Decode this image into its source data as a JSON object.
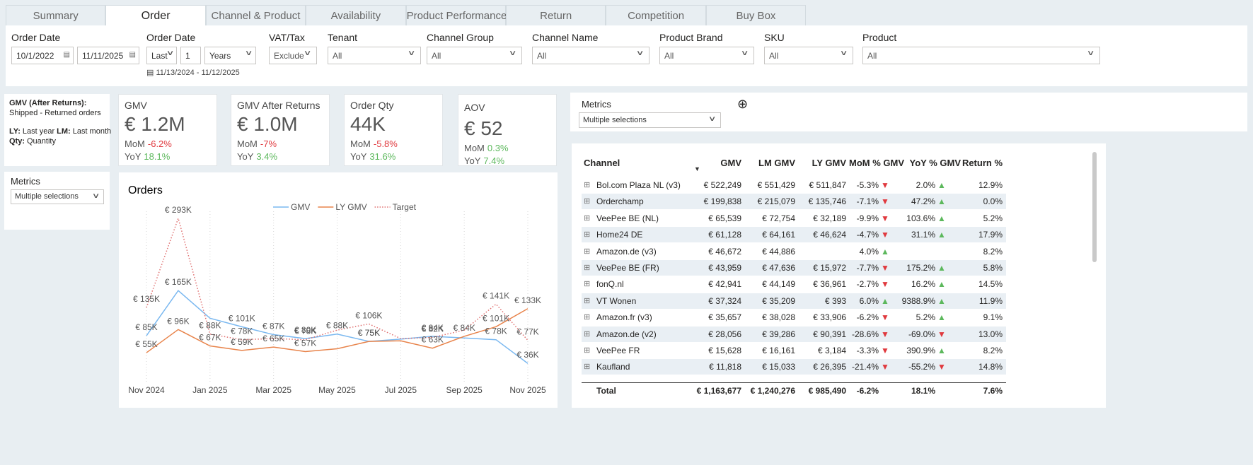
{
  "tabs": {
    "items": [
      "Summary",
      "Order",
      "Channel & Product",
      "Availability",
      "Product Performance",
      "Return",
      "Competition",
      "Buy Box"
    ],
    "active": 1
  },
  "filters": [
    {
      "label": "Order Date",
      "from": "10/1/2022",
      "to": "11/11/2025"
    },
    {
      "label": "Order Date",
      "mode": "Last",
      "count": "1",
      "unit": "Years",
      "range": "11/13/2024 - 11/12/2025"
    },
    {
      "label": "VAT/Tax",
      "value": "Exclude"
    },
    {
      "label": "Tenant",
      "value": "All"
    },
    {
      "label": "Channel Group",
      "value": "All"
    },
    {
      "label": "Channel Name",
      "value": "All"
    },
    {
      "label": "Product Brand",
      "value": "All"
    },
    {
      "label": "SKU",
      "value": "All"
    },
    {
      "label": "Product",
      "value": "All"
    }
  ],
  "note": {
    "title": "GMV (After Returns):",
    "line": "Shipped - Returned orders",
    "ly_key": "LY:",
    "ly": "Last year",
    "lm_key": "LM:",
    "lm": "Last month",
    "qty_key": "Qty:",
    "qty": "Quantity"
  },
  "metrics_left": {
    "label": "Metrics",
    "value": "Multiple selections"
  },
  "metrics_right": {
    "label": "Metrics",
    "value": "Multiple selections"
  },
  "kpis": [
    {
      "title": "GMV",
      "value": "€ 1.2M",
      "mom_label": "MoM",
      "mom": "-6.2%",
      "yoy_label": "YoY",
      "yoy": "18.1%"
    },
    {
      "title": "GMV After Returns",
      "value": "€ 1.0M",
      "mom_label": "MoM",
      "mom": "-7%",
      "yoy_label": "YoY",
      "yoy": "3.4%"
    },
    {
      "title": "Order Qty",
      "value": "44K",
      "mom_label": "MoM",
      "mom": "-5.8%",
      "yoy_label": "YoY",
      "yoy": "31.6%"
    },
    {
      "title": "AOV",
      "value": "€ 52",
      "mom_label": "MoM",
      "mom": "0.3%",
      "yoy_label": "YoY",
      "yoy": "7.4%"
    }
  ],
  "chart_data": {
    "type": "line",
    "title": "Orders",
    "x": [
      "2024-11",
      "2024-12",
      "2025-01",
      "2025-02",
      "2025-03",
      "2025-04",
      "2025-05",
      "2025-06",
      "2025-07",
      "2025-08",
      "2025-09",
      "2025-10",
      "2025-11"
    ],
    "xticks": [
      {
        "value": "2024-11",
        "label": "Nov 2024"
      },
      {
        "value": "2025-01",
        "label": "Jan 2025"
      },
      {
        "value": "2025-03",
        "label": "Mar 2025"
      },
      {
        "value": "2025-05",
        "label": "May 2025"
      },
      {
        "value": "2025-07",
        "label": "Jul 2025"
      },
      {
        "value": "2025-09",
        "label": "Sep 2025"
      },
      {
        "value": "2025-11",
        "label": "Nov 2025"
      }
    ],
    "series": [
      {
        "name": "GMV",
        "color": "#7ab8f0",
        "style": "solid",
        "values": [
          85,
          165,
          116,
          101,
          87,
          80,
          88,
          75,
          79,
          84,
          81,
          78,
          36
        ],
        "value_labels": [
          "€ 85K",
          "€ 165K",
          null,
          "€ 101K",
          "€ 87K",
          "€ 80K",
          "€ 88K",
          "€ 75K",
          null,
          "€ 84K",
          null,
          "€ 78K",
          "€ 36K"
        ]
      },
      {
        "name": "LY GMV",
        "color": "#e8834a",
        "style": "solid",
        "values": [
          55,
          96,
          67,
          59,
          65,
          57,
          62,
          75,
          76,
          63,
          84,
          101,
          133
        ],
        "value_labels": [
          "€ 55K",
          "€ 96K",
          "€ 67K",
          "€ 59K",
          "€ 65K",
          "€ 57K",
          null,
          "€ 75K",
          null,
          "€ 63K",
          "€ 84K",
          "€ 101K",
          "€ 133K"
        ]
      },
      {
        "name": "Target",
        "color": "#e07070",
        "style": "dotted",
        "values": [
          135,
          293,
          88,
          78,
          80,
          78,
          95,
          106,
          80,
          82,
          95,
          141,
          77
        ],
        "value_labels": [
          "€ 135K",
          "€ 293K",
          "€ 88K",
          "€ 78K",
          null,
          "€ 78K",
          null,
          "€ 106K",
          null,
          "€ 82K",
          null,
          "€ 141K",
          "€ 77K"
        ]
      }
    ]
  },
  "table": {
    "columns": [
      "Channel",
      "GMV",
      "LM GMV",
      "LY GMV",
      "MoM % GMV",
      "YoY % GMV",
      "Return %"
    ],
    "rows": [
      [
        "Bol.com Plaza NL (v3)",
        "€ 522,249",
        "€ 551,429",
        "€ 511,847",
        "-5.3%",
        "2.0%",
        "12.9%"
      ],
      [
        "Orderchamp",
        "€ 199,838",
        "€ 215,079",
        "€ 135,746",
        "-7.1%",
        "47.2%",
        "0.0%"
      ],
      [
        "VeePee BE (NL)",
        "€ 65,539",
        "€ 72,754",
        "€ 32,189",
        "-9.9%",
        "103.6%",
        "5.2%"
      ],
      [
        "Home24 DE",
        "€ 61,128",
        "€ 64,161",
        "€ 46,624",
        "-4.7%",
        "31.1%",
        "17.9%"
      ],
      [
        "Amazon.de (v3)",
        "€ 46,672",
        "€ 44,886",
        null,
        "4.0%",
        null,
        "8.2%"
      ],
      [
        "VeePee BE (FR)",
        "€ 43,959",
        "€ 47,636",
        "€ 15,972",
        "-7.7%",
        "175.2%",
        "5.8%"
      ],
      [
        "fonQ.nl",
        "€ 42,941",
        "€ 44,149",
        "€ 36,961",
        "-2.7%",
        "16.2%",
        "14.5%"
      ],
      [
        "VT Wonen",
        "€ 37,324",
        "€ 35,209",
        "€ 393",
        "6.0%",
        "9388.9%",
        "11.9%"
      ],
      [
        "Amazon.fr (v3)",
        "€ 35,657",
        "€ 38,028",
        "€ 33,906",
        "-6.2%",
        "5.2%",
        "9.1%"
      ],
      [
        "Amazon.de (v2)",
        "€ 28,056",
        "€ 39,286",
        "€ 90,391",
        "-28.6%",
        "-69.0%",
        "13.0%"
      ],
      [
        "VeePee FR",
        "€ 15,628",
        "€ 16,161",
        "€ 3,184",
        "-3.3%",
        "390.9%",
        "8.2%"
      ],
      [
        "Kaufland",
        "€ 11,818",
        "€ 15,033",
        "€ 26,395",
        "-21.4%",
        "-55.2%",
        "14.8%"
      ]
    ],
    "total": [
      "Total",
      "€ 1,163,677",
      "€ 1,240,276",
      "€ 985,490",
      "-6.2%",
      "18.1%",
      "7.6%"
    ]
  }
}
